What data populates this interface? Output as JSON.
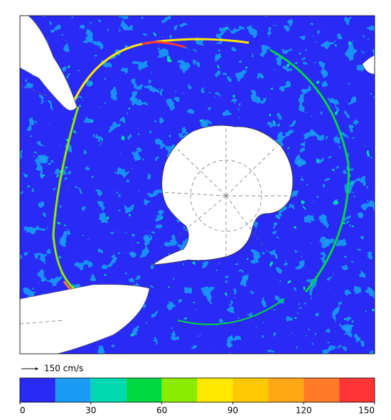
{
  "scale_label": "150 cm/s",
  "colorbar": {
    "bins": [
      0,
      15,
      30,
      45,
      60,
      75,
      90,
      105,
      120,
      135,
      150
    ],
    "colors": [
      "#2a2af5",
      "#1a9cf5",
      "#00d8b0",
      "#00d840",
      "#8cec00",
      "#ffe800",
      "#ffc800",
      "#ffa814",
      "#ff7a28",
      "#ff3434"
    ],
    "ticks": [
      0,
      30,
      60,
      90,
      120,
      150
    ]
  }
}
